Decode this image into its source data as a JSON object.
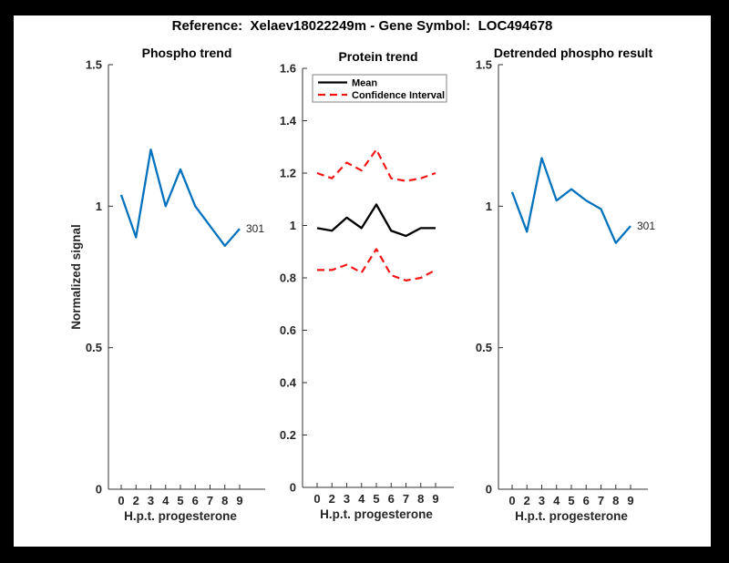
{
  "figure": {
    "title": "Reference:  Xelaev18022249m - Gene Symbol:  LOC494678",
    "background": "#ffffff",
    "frame_color": "#000000",
    "accent_blue": "#0072bd",
    "accent_red": "#f51414",
    "axis_color": "#262626"
  },
  "chart_data": [
    {
      "type": "line",
      "title": "Phospho trend",
      "xlabel": "H.p.t. progesterone",
      "ylabel": "Normalized signal",
      "x_tick_labels": [
        "0",
        "2",
        "3",
        "4",
        "5",
        "6",
        "7",
        "8",
        "9"
      ],
      "ylim": [
        0,
        1.5
      ],
      "yticks": [
        {
          "v": 0,
          "label": "0"
        },
        {
          "v": 0.5,
          "label": "0.5"
        },
        {
          "v": 1,
          "label": "1"
        },
        {
          "v": 1.5,
          "label": "1.5"
        }
      ],
      "grid": false,
      "series": [
        {
          "name": "phospho-signal",
          "color": "#0072bd",
          "style": "solid",
          "width": 2.3,
          "values": [
            1.04,
            0.89,
            1.2,
            1.0,
            1.13,
            1.0,
            0.93,
            0.86,
            0.92
          ],
          "end_label": "301"
        }
      ]
    },
    {
      "type": "line",
      "title": "Protein trend",
      "xlabel": "H.p.t. progesterone",
      "ylabel": "",
      "x_tick_labels": [
        "0",
        "2",
        "3",
        "4",
        "5",
        "6",
        "7",
        "8",
        "9"
      ],
      "ylim": [
        0,
        1.6
      ],
      "yticks": [
        {
          "v": 0,
          "label": "0"
        },
        {
          "v": 0.2,
          "label": "0.2"
        },
        {
          "v": 0.4,
          "label": "0.4"
        },
        {
          "v": 0.6,
          "label": "0.6"
        },
        {
          "v": 0.8,
          "label": "0.8"
        },
        {
          "v": 1,
          "label": "1"
        },
        {
          "v": 1.2,
          "label": "1.2"
        },
        {
          "v": 1.4,
          "label": "1.4"
        },
        {
          "v": 1.6,
          "label": "1.6"
        }
      ],
      "grid": false,
      "legend": {
        "position": "top-left",
        "items": [
          {
            "label": "Mean",
            "series": 0
          },
          {
            "label": "Confidence Interval",
            "series": 1
          }
        ]
      },
      "series": [
        {
          "name": "mean",
          "color": "#000000",
          "style": "solid",
          "width": 2.3,
          "values": [
            0.99,
            0.98,
            1.03,
            0.99,
            1.08,
            0.98,
            0.96,
            0.99,
            0.99
          ]
        },
        {
          "name": "ci-upper",
          "color": "#f51414",
          "style": "dashed",
          "width": 2.2,
          "values": [
            1.2,
            1.18,
            1.24,
            1.21,
            1.29,
            1.18,
            1.17,
            1.18,
            1.2
          ]
        },
        {
          "name": "ci-lower",
          "color": "#f51414",
          "style": "dashed",
          "width": 2.2,
          "values": [
            0.83,
            0.83,
            0.85,
            0.82,
            0.91,
            0.81,
            0.79,
            0.8,
            0.83
          ]
        }
      ]
    },
    {
      "type": "line",
      "title": "Detrended phospho result",
      "xlabel": "H.p.t. progesterone",
      "ylabel": "",
      "x_tick_labels": [
        "0",
        "2",
        "3",
        "4",
        "5",
        "6",
        "7",
        "8",
        "9"
      ],
      "ylim": [
        0,
        1.5
      ],
      "yticks": [
        {
          "v": 0,
          "label": "0"
        },
        {
          "v": 0.5,
          "label": "0.5"
        },
        {
          "v": 1,
          "label": "1"
        },
        {
          "v": 1.5,
          "label": "1.5"
        }
      ],
      "grid": false,
      "series": [
        {
          "name": "detrended-phospho",
          "color": "#0072bd",
          "style": "solid",
          "width": 2.3,
          "values": [
            1.05,
            0.91,
            1.17,
            1.02,
            1.06,
            1.02,
            0.99,
            0.87,
            0.93
          ],
          "end_label": "301"
        }
      ]
    }
  ]
}
